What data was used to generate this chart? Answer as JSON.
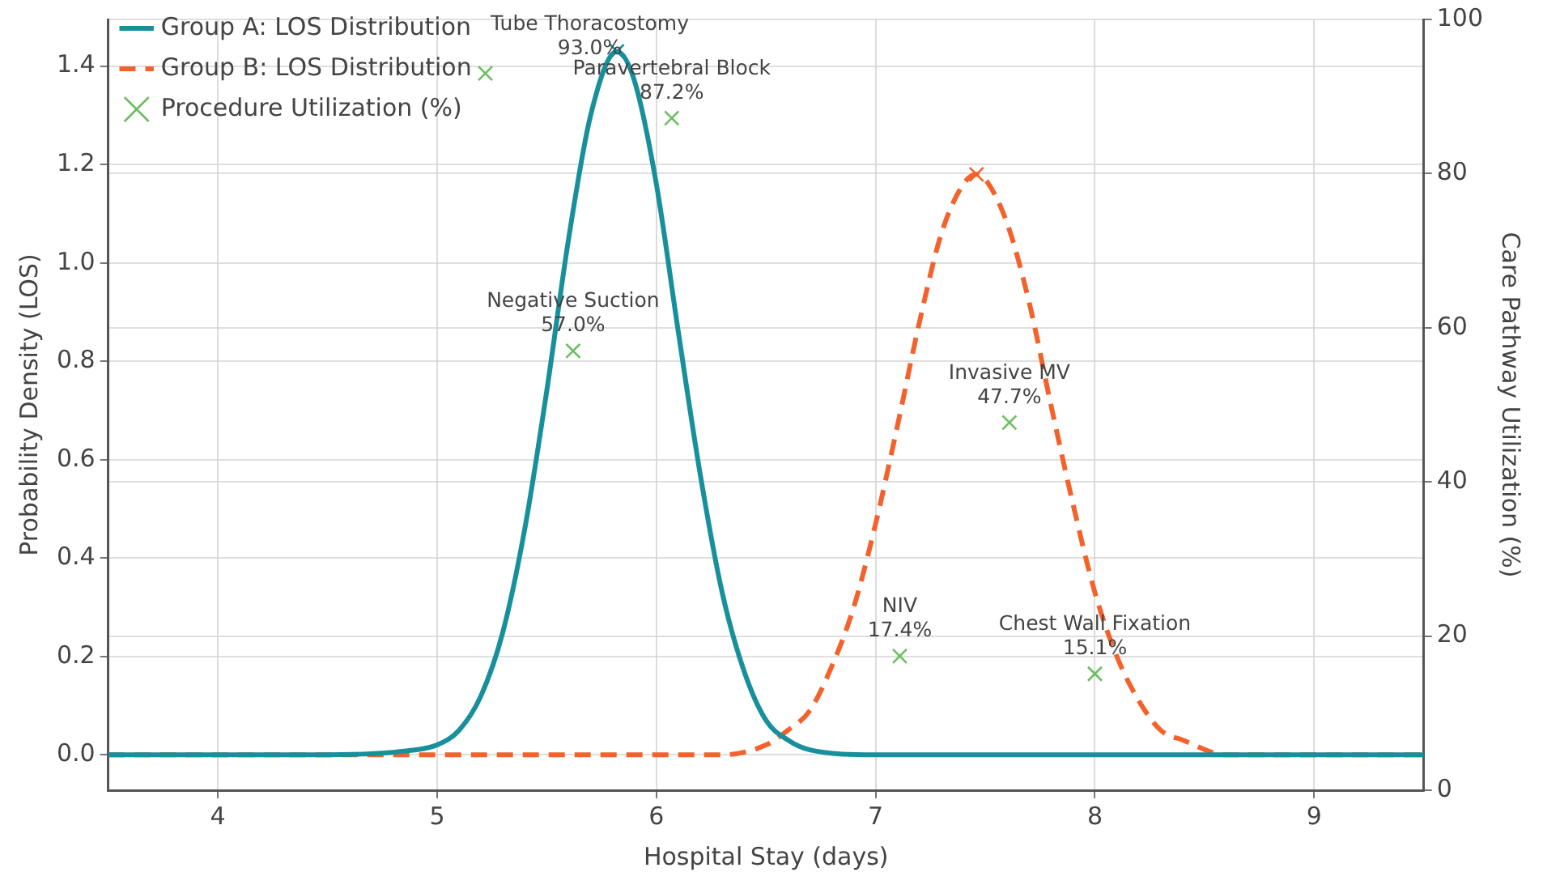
{
  "chart_data": {
    "type": "line",
    "xlabel": "Hospital Stay (days)",
    "ylabel": "Probability Density (LOS)",
    "y2label": "Care Pathway Utilization (%)",
    "xlim": [
      3.5,
      9.5
    ],
    "xticks": [
      4,
      5,
      6,
      7,
      8,
      9
    ],
    "ylim": [
      -0.072,
      1.495
    ],
    "yticks": [
      {
        "value": 0,
        "label": "0.0"
      },
      {
        "value": 0.2,
        "label": "0.2"
      },
      {
        "value": 0.4,
        "label": "0.4"
      },
      {
        "value": 0.6,
        "label": "0.6"
      },
      {
        "value": 0.8,
        "label": "0.8"
      },
      {
        "value": 1.0,
        "label": "1.0"
      },
      {
        "value": 1.2,
        "label": "1.2"
      },
      {
        "value": 1.4,
        "label": "1.4"
      }
    ],
    "y2lim": [
      0,
      100
    ],
    "y2ticks": [
      0,
      20,
      40,
      60,
      80,
      100
    ],
    "grid": true,
    "legend": "top left",
    "series": [
      {
        "name": "Group A: LOS Distribution",
        "color": "#17909c",
        "line_style": "solid",
        "marker": "none",
        "x": [
          3.5,
          4.5,
          4.9,
          5.0,
          5.1,
          5.2,
          5.3,
          5.4,
          5.5,
          5.6,
          5.7,
          5.82,
          5.9,
          6.0,
          6.1,
          6.2,
          6.3,
          6.4,
          6.5,
          6.6,
          6.7,
          7.0,
          8.0,
          9.5
        ],
        "values": [
          0,
          0,
          0.01,
          0.02,
          0.05,
          0.12,
          0.25,
          0.46,
          0.74,
          1.05,
          1.3,
          1.43,
          1.37,
          1.16,
          0.86,
          0.57,
          0.33,
          0.17,
          0.07,
          0.03,
          0.01,
          0,
          0,
          0
        ]
      },
      {
        "name": "Group B: LOS Distribution",
        "color": "#f4622c",
        "line_style": "dashed",
        "marker": "none",
        "x": [
          3.5,
          5.0,
          6.0,
          6.3,
          6.5,
          6.6,
          6.7,
          6.8,
          6.9,
          7.0,
          7.1,
          7.2,
          7.3,
          7.4,
          7.46,
          7.5,
          7.6,
          7.7,
          7.8,
          7.9,
          8.0,
          8.1,
          8.2,
          8.3,
          8.4,
          8.6,
          9.0,
          9.5
        ],
        "values": [
          0,
          0,
          0,
          0,
          0.02,
          0.05,
          0.09,
          0.18,
          0.3,
          0.47,
          0.67,
          0.88,
          1.06,
          1.16,
          1.18,
          1.17,
          1.08,
          0.92,
          0.71,
          0.51,
          0.33,
          0.2,
          0.11,
          0.05,
          0.03,
          0,
          0,
          0
        ]
      },
      {
        "type": "scatter",
        "color": "#17909c",
        "marker": "cross",
        "x": [
          5.82
        ],
        "values": [
          1.43
        ]
      },
      {
        "type": "scatter",
        "color": "#f4622c",
        "marker": "cross",
        "x": [
          7.46
        ],
        "values": [
          1.18
        ]
      },
      {
        "name": "Procedure Utilization (%)",
        "type": "scatter",
        "axis": "y2",
        "color": "#6abf5e",
        "marker": "cross",
        "x": [
          5.22,
          6.07,
          5.62,
          7.61,
          7.11,
          8.0
        ],
        "values": [
          93.0,
          87.2,
          57.0,
          47.7,
          17.4,
          15.1
        ],
        "value_labels": [
          "Tube Thoracostomy\n93.0%",
          "Paravertebral Block\n87.2%",
          "Negative Suction\n57.0%",
          "Invasive MV\n47.7%",
          "NIV\n17.4%",
          "Chest Wall Fixation\n15.1%"
        ]
      }
    ]
  }
}
